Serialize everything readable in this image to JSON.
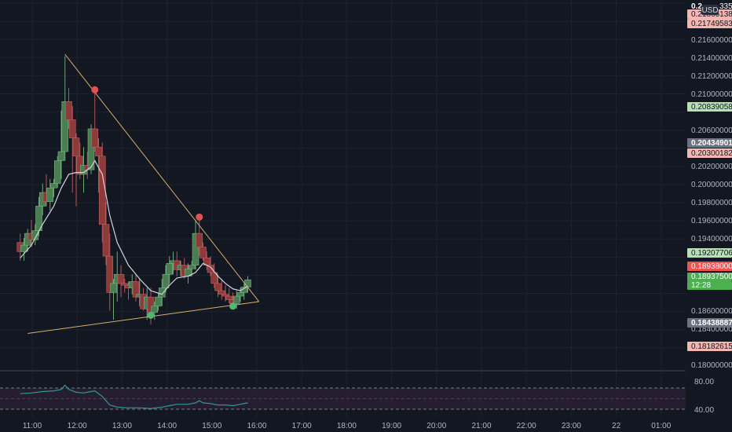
{
  "colors": {
    "background": "#131722",
    "grid": "#1e222d",
    "up": "#4a7d54",
    "down": "#8d3a3a",
    "ma_line": "#d1d4dc",
    "trendline": "#d4b06a",
    "pivot_high": "#e05252",
    "pivot_low": "#52b86c",
    "rsi_line": "#2e9a96",
    "rsi_band": "#2a1f35",
    "label_green": "#4caf50",
    "label_red": "#ef5350",
    "label_pink": "#f5b5b0",
    "label_lightgreen": "#b9e0b2",
    "label_gray": "#6d7280",
    "axis_text": "#b2b5be"
  },
  "currency": "USD",
  "price_scale": {
    "ticks": [
      "0.21600000",
      "0.21400000",
      "0.21200000",
      "0.21000000",
      "0.20600000",
      "0.20200000",
      "0.20000000",
      "0.19800000",
      "0.19600000",
      "0.19400000",
      "0.18600000",
      "0.18400000",
      "0.18000000"
    ],
    "top_cut": "0.2",
    "top_cut_suffix": "335"
  },
  "price_labels": [
    {
      "text": "0.21865138",
      "style": "pink"
    },
    {
      "text": "0.21749583",
      "style": "pink"
    },
    {
      "text": "0.20839058",
      "style": "lightgreen"
    },
    {
      "text": "0.20434901",
      "style": "gray"
    },
    {
      "text": "0.20300182",
      "style": "pink"
    },
    {
      "text": "0.19207706",
      "style": "lightgreen"
    },
    {
      "text": "0.18938000",
      "style": "red"
    },
    {
      "text": "0.18937500",
      "style": "green"
    },
    {
      "text": "12:28",
      "style": "green"
    },
    {
      "text": "0.18438887",
      "style": "gray"
    },
    {
      "text": "0.18182615",
      "style": "pink"
    }
  ],
  "rsi_scale": {
    "upper": "80.00",
    "lower": "40.00"
  },
  "time_axis": [
    "11:00",
    "12:00",
    "13:00",
    "14:00",
    "15:00",
    "16:00",
    "17:00",
    "18:00",
    "19:00",
    "20:00",
    "21:00",
    "22:00",
    "23:00",
    "22",
    "01:00"
  ],
  "chart_data": {
    "type": "candlestick",
    "symbol_quote": "USD",
    "y_range": [
      0.18,
      0.22
    ],
    "x_range": [
      "10:45",
      "01:30"
    ],
    "candles": [
      {
        "t": "10:45",
        "o": 0.1935,
        "h": 0.1945,
        "l": 0.1915,
        "c": 0.1925
      },
      {
        "t": "10:50",
        "o": 0.1925,
        "h": 0.194,
        "l": 0.1915,
        "c": 0.1932
      },
      {
        "t": "10:55",
        "o": 0.1932,
        "h": 0.195,
        "l": 0.1925,
        "c": 0.1945
      },
      {
        "t": "11:00",
        "o": 0.1945,
        "h": 0.196,
        "l": 0.193,
        "c": 0.1938
      },
      {
        "t": "11:05",
        "o": 0.1938,
        "h": 0.1955,
        "l": 0.1932,
        "c": 0.1948
      },
      {
        "t": "11:10",
        "o": 0.1948,
        "h": 0.1985,
        "l": 0.1942,
        "c": 0.1975
      },
      {
        "t": "11:15",
        "o": 0.1975,
        "h": 0.2,
        "l": 0.1965,
        "c": 0.199
      },
      {
        "t": "11:20",
        "o": 0.199,
        "h": 0.201,
        "l": 0.1975,
        "c": 0.198
      },
      {
        "t": "11:25",
        "o": 0.198,
        "h": 0.2005,
        "l": 0.197,
        "c": 0.1995
      },
      {
        "t": "11:30",
        "o": 0.1995,
        "h": 0.2005,
        "l": 0.1985,
        "c": 0.2
      },
      {
        "t": "11:35",
        "o": 0.2,
        "h": 0.203,
        "l": 0.1995,
        "c": 0.2025
      },
      {
        "t": "11:40",
        "o": 0.2025,
        "h": 0.208,
        "l": 0.2005,
        "c": 0.2035
      },
      {
        "t": "11:45",
        "o": 0.2035,
        "h": 0.214,
        "l": 0.2025,
        "c": 0.209
      },
      {
        "t": "11:50",
        "o": 0.209,
        "h": 0.2105,
        "l": 0.206,
        "c": 0.207
      },
      {
        "t": "11:55",
        "o": 0.207,
        "h": 0.2085,
        "l": 0.199,
        "c": 0.205
      },
      {
        "t": "12:00",
        "o": 0.205,
        "h": 0.2055,
        "l": 0.1975,
        "c": 0.203
      },
      {
        "t": "12:05",
        "o": 0.203,
        "h": 0.2045,
        "l": 0.2005,
        "c": 0.201
      },
      {
        "t": "12:10",
        "o": 0.201,
        "h": 0.204,
        "l": 0.199,
        "c": 0.202
      },
      {
        "t": "12:15",
        "o": 0.202,
        "h": 0.2035,
        "l": 0.2005,
        "c": 0.2015
      },
      {
        "t": "12:20",
        "o": 0.2015,
        "h": 0.2065,
        "l": 0.201,
        "c": 0.206
      },
      {
        "t": "12:25",
        "o": 0.206,
        "h": 0.21,
        "l": 0.2035,
        "c": 0.204
      },
      {
        "t": "12:30",
        "o": 0.204,
        "h": 0.205,
        "l": 0.199,
        "c": 0.203
      },
      {
        "t": "12:35",
        "o": 0.203,
        "h": 0.2045,
        "l": 0.1935,
        "c": 0.1955
      },
      {
        "t": "12:40",
        "o": 0.1955,
        "h": 0.198,
        "l": 0.191,
        "c": 0.192
      },
      {
        "t": "12:45",
        "o": 0.192,
        "h": 0.1945,
        "l": 0.186,
        "c": 0.188
      },
      {
        "t": "12:50",
        "o": 0.188,
        "h": 0.1895,
        "l": 0.185,
        "c": 0.189
      },
      {
        "t": "12:55",
        "o": 0.189,
        "h": 0.1925,
        "l": 0.187,
        "c": 0.19
      },
      {
        "t": "13:00",
        "o": 0.19,
        "h": 0.191,
        "l": 0.1875,
        "c": 0.189
      },
      {
        "t": "13:05",
        "o": 0.189,
        "h": 0.1895,
        "l": 0.188,
        "c": 0.1888
      },
      {
        "t": "13:10",
        "o": 0.1888,
        "h": 0.1892,
        "l": 0.1872,
        "c": 0.1885
      },
      {
        "t": "13:15",
        "o": 0.1885,
        "h": 0.19,
        "l": 0.1878,
        "c": 0.1892
      },
      {
        "t": "13:20",
        "o": 0.1892,
        "h": 0.19,
        "l": 0.187,
        "c": 0.1875
      },
      {
        "t": "13:25",
        "o": 0.1875,
        "h": 0.1895,
        "l": 0.1865,
        "c": 0.1878
      },
      {
        "t": "13:30",
        "o": 0.1878,
        "h": 0.1885,
        "l": 0.186,
        "c": 0.1862
      },
      {
        "t": "13:35",
        "o": 0.1862,
        "h": 0.1885,
        "l": 0.185,
        "c": 0.1875
      },
      {
        "t": "13:40",
        "o": 0.1875,
        "h": 0.1885,
        "l": 0.1845,
        "c": 0.1858
      },
      {
        "t": "13:45",
        "o": 0.1858,
        "h": 0.187,
        "l": 0.185,
        "c": 0.1865
      },
      {
        "t": "13:50",
        "o": 0.1865,
        "h": 0.188,
        "l": 0.186,
        "c": 0.1875
      },
      {
        "t": "13:55",
        "o": 0.1875,
        "h": 0.1895,
        "l": 0.1865,
        "c": 0.1885
      },
      {
        "t": "14:00",
        "o": 0.1885,
        "h": 0.191,
        "l": 0.188,
        "c": 0.19
      },
      {
        "t": "14:05",
        "o": 0.19,
        "h": 0.192,
        "l": 0.189,
        "c": 0.1912
      },
      {
        "t": "14:10",
        "o": 0.1912,
        "h": 0.1925,
        "l": 0.19,
        "c": 0.1915
      },
      {
        "t": "14:15",
        "o": 0.1915,
        "h": 0.1925,
        "l": 0.1898,
        "c": 0.1905
      },
      {
        "t": "14:20",
        "o": 0.1905,
        "h": 0.1915,
        "l": 0.1898,
        "c": 0.191
      },
      {
        "t": "14:25",
        "o": 0.191,
        "h": 0.1918,
        "l": 0.1895,
        "c": 0.1898
      },
      {
        "t": "14:30",
        "o": 0.1898,
        "h": 0.1912,
        "l": 0.189,
        "c": 0.1906
      },
      {
        "t": "14:35",
        "o": 0.1906,
        "h": 0.1915,
        "l": 0.1898,
        "c": 0.191
      },
      {
        "t": "14:40",
        "o": 0.191,
        "h": 0.196,
        "l": 0.1905,
        "c": 0.1945
      },
      {
        "t": "14:45",
        "o": 0.1945,
        "h": 0.1962,
        "l": 0.192,
        "c": 0.193
      },
      {
        "t": "14:50",
        "o": 0.193,
        "h": 0.1935,
        "l": 0.1915,
        "c": 0.1918
      },
      {
        "t": "14:55",
        "o": 0.1918,
        "h": 0.1925,
        "l": 0.1905,
        "c": 0.191
      },
      {
        "t": "15:00",
        "o": 0.191,
        "h": 0.192,
        "l": 0.1898,
        "c": 0.1902
      },
      {
        "t": "15:05",
        "o": 0.1902,
        "h": 0.1912,
        "l": 0.1885,
        "c": 0.189
      },
      {
        "t": "15:10",
        "o": 0.189,
        "h": 0.19,
        "l": 0.1875,
        "c": 0.1882
      },
      {
        "t": "15:15",
        "o": 0.1882,
        "h": 0.1895,
        "l": 0.1872,
        "c": 0.1878
      },
      {
        "t": "15:20",
        "o": 0.1878,
        "h": 0.1888,
        "l": 0.187,
        "c": 0.1876
      },
      {
        "t": "15:25",
        "o": 0.1876,
        "h": 0.1885,
        "l": 0.1868,
        "c": 0.1872
      },
      {
        "t": "15:30",
        "o": 0.1872,
        "h": 0.188,
        "l": 0.1865,
        "c": 0.1868
      },
      {
        "t": "15:35",
        "o": 0.1868,
        "h": 0.1882,
        "l": 0.1862,
        "c": 0.1876
      },
      {
        "t": "15:40",
        "o": 0.1876,
        "h": 0.1885,
        "l": 0.187,
        "c": 0.188
      },
      {
        "t": "15:45",
        "o": 0.188,
        "h": 0.189,
        "l": 0.1872,
        "c": 0.1886
      },
      {
        "t": "15:50",
        "o": 0.1886,
        "h": 0.1898,
        "l": 0.188,
        "c": 0.1894
      }
    ],
    "moving_average": [
      {
        "t": "10:45",
        "v": 0.1918
      },
      {
        "t": "11:00",
        "v": 0.1932
      },
      {
        "t": "11:15",
        "v": 0.1955
      },
      {
        "t": "11:30",
        "v": 0.1975
      },
      {
        "t": "11:40",
        "v": 0.1995
      },
      {
        "t": "11:50",
        "v": 0.201
      },
      {
        "t": "12:00",
        "v": 0.2012
      },
      {
        "t": "12:10",
        "v": 0.2012
      },
      {
        "t": "12:20",
        "v": 0.2018
      },
      {
        "t": "12:25",
        "v": 0.2025
      },
      {
        "t": "12:35",
        "v": 0.201
      },
      {
        "t": "12:45",
        "v": 0.1965
      },
      {
        "t": "12:55",
        "v": 0.1935
      },
      {
        "t": "13:10",
        "v": 0.191
      },
      {
        "t": "13:25",
        "v": 0.1895
      },
      {
        "t": "13:40",
        "v": 0.1882
      },
      {
        "t": "13:55",
        "v": 0.1878
      },
      {
        "t": "14:05",
        "v": 0.1888
      },
      {
        "t": "14:15",
        "v": 0.1896
      },
      {
        "t": "14:30",
        "v": 0.1898
      },
      {
        "t": "14:40",
        "v": 0.1902
      },
      {
        "t": "14:50",
        "v": 0.1912
      },
      {
        "t": "15:00",
        "v": 0.1908
      },
      {
        "t": "15:10",
        "v": 0.1898
      },
      {
        "t": "15:20",
        "v": 0.189
      },
      {
        "t": "15:30",
        "v": 0.1884
      },
      {
        "t": "15:40",
        "v": 0.1882
      },
      {
        "t": "15:50",
        "v": 0.1887
      }
    ],
    "trendlines": [
      {
        "name": "upper",
        "from": {
          "t": "11:45",
          "v": 0.2142
        },
        "to": {
          "t": "16:05",
          "v": 0.187
        }
      },
      {
        "name": "lower",
        "from": {
          "t": "10:55",
          "v": 0.1835
        },
        "to": {
          "t": "16:05",
          "v": 0.187
        }
      }
    ],
    "pivots": [
      {
        "kind": "high",
        "t": "12:25",
        "v": 0.2103
      },
      {
        "kind": "high",
        "t": "14:45",
        "v": 0.1963
      },
      {
        "kind": "low",
        "t": "13:40",
        "v": 0.1855
      },
      {
        "kind": "low",
        "t": "15:30",
        "v": 0.1865
      }
    ],
    "rsi": {
      "y_range": [
        30,
        90
      ],
      "upper_band": 70,
      "lower_band": 40,
      "mid_band": 55,
      "values": [
        {
          "t": "10:45",
          "v": 62
        },
        {
          "t": "11:00",
          "v": 63
        },
        {
          "t": "11:15",
          "v": 65
        },
        {
          "t": "11:30",
          "v": 66
        },
        {
          "t": "11:40",
          "v": 68
        },
        {
          "t": "11:45",
          "v": 74
        },
        {
          "t": "11:50",
          "v": 68
        },
        {
          "t": "12:00",
          "v": 64
        },
        {
          "t": "12:10",
          "v": 63
        },
        {
          "t": "12:20",
          "v": 65
        },
        {
          "t": "12:25",
          "v": 66
        },
        {
          "t": "12:35",
          "v": 58
        },
        {
          "t": "12:45",
          "v": 46
        },
        {
          "t": "12:55",
          "v": 43
        },
        {
          "t": "13:10",
          "v": 42
        },
        {
          "t": "13:25",
          "v": 42
        },
        {
          "t": "13:40",
          "v": 41
        },
        {
          "t": "13:55",
          "v": 43
        },
        {
          "t": "14:05",
          "v": 45
        },
        {
          "t": "14:15",
          "v": 47
        },
        {
          "t": "14:30",
          "v": 47
        },
        {
          "t": "14:40",
          "v": 49
        },
        {
          "t": "14:45",
          "v": 52
        },
        {
          "t": "14:50",
          "v": 49
        },
        {
          "t": "15:00",
          "v": 48
        },
        {
          "t": "15:10",
          "v": 46
        },
        {
          "t": "15:20",
          "v": 46
        },
        {
          "t": "15:30",
          "v": 45
        },
        {
          "t": "15:40",
          "v": 47
        },
        {
          "t": "15:50",
          "v": 49
        }
      ]
    }
  }
}
